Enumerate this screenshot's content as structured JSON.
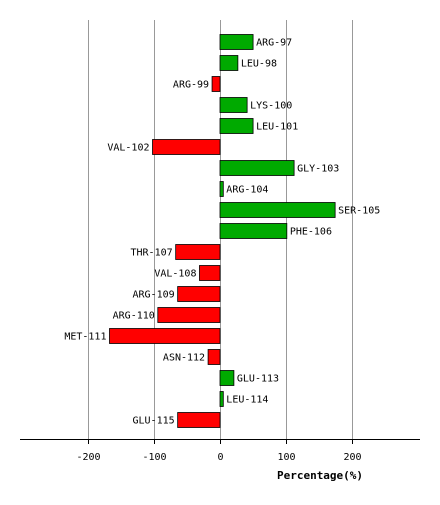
{
  "chart_data": {
    "type": "bar",
    "orientation": "horizontal",
    "xlabel": "Percentage(%)",
    "ylabel": "",
    "title": "",
    "xlim": [
      -300,
      300
    ],
    "xticks": [
      -200,
      -100,
      0,
      100,
      200
    ],
    "grid": true,
    "colors": {
      "positive": "#00aa00",
      "negative": "#ff0000",
      "border": "#000000",
      "grid": "#999999"
    },
    "categories": [
      "ARG-97",
      "LEU-98",
      "ARG-99",
      "LYS-100",
      "LEU-101",
      "VAL-102",
      "GLY-103",
      "ARG-104",
      "SER-105",
      "PHE-106",
      "THR-107",
      "VAL-108",
      "ARG-109",
      "ARG-110",
      "MET-111",
      "ASN-112",
      "GLU-113",
      "LEU-114",
      "GLU-115"
    ],
    "values": [
      50,
      27,
      -12,
      41,
      50,
      -102,
      112,
      5,
      174,
      101,
      -67,
      -31,
      -64,
      -94,
      -167,
      -18,
      21,
      5,
      -64
    ]
  }
}
